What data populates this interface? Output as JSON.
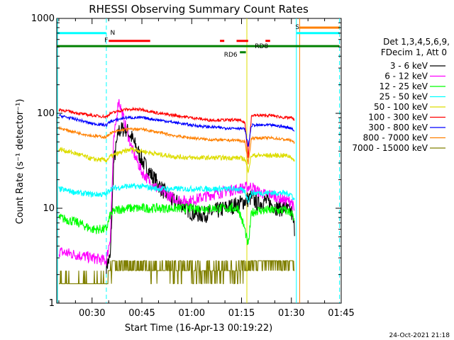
{
  "chart_data": {
    "type": "line",
    "title": "RHESSI Observing Summary Count Rates",
    "xlabel": "Start Time (16-Apr-13 00:19:22)",
    "ylabel": "Count Rate (s⁻¹ detector⁻¹)",
    "ylog": true,
    "ylim": [
      1,
      1000
    ],
    "xlim_minutes": [
      19.37,
      105
    ],
    "x_ticks": [
      "00:30",
      "00:45",
      "01:00",
      "01:15",
      "01:30",
      "01:45"
    ],
    "y_ticks": [
      "1",
      "10",
      "100",
      "1000"
    ],
    "legend_title_line1": "Det 1,3,4,5,6,9,",
    "legend_title_line2": "FDecim 1, Att 0",
    "legend_position": "right",
    "footer_timestamp": "24-Oct-2021 21:18",
    "colors": {
      "3-6": "#000000",
      "6-12": "#ff00ff",
      "12-25": "#00ff00",
      "25-50": "#00ffff",
      "50-100": "#dddd00",
      "100-300": "#ff0000",
      "300-800": "#0000ff",
      "800-7000": "#ff8000",
      "7000-15000": "#808000"
    },
    "series": [
      {
        "name": "3 - 6 keV",
        "key": "3-6",
        "x": [
          34.3,
          35.5,
          36.5,
          38,
          40,
          42,
          45,
          48,
          51,
          54,
          57,
          60,
          63,
          66,
          70,
          74,
          78,
          80,
          82,
          84,
          86,
          88,
          90,
          91
        ],
        "y": [
          2.5,
          3,
          30,
          65,
          70,
          55,
          32,
          22,
          16,
          12,
          11,
          9,
          8.5,
          9,
          10,
          11,
          13,
          11,
          12,
          11,
          10,
          10,
          9,
          6
        ]
      },
      {
        "name": "6 - 12 keV",
        "key": "6-12",
        "x": [
          20,
          26,
          30,
          34.3,
          35.5,
          36.5,
          38,
          40,
          42,
          45,
          48,
          51,
          54,
          57,
          60,
          63,
          66,
          70,
          74,
          78,
          80,
          82,
          84,
          86,
          88,
          90,
          91
        ],
        "y": [
          3.5,
          3.2,
          3.0,
          2.8,
          5,
          50,
          140,
          75,
          42,
          24,
          18,
          15,
          13,
          12,
          12,
          13,
          14,
          15,
          16,
          17,
          15,
          14,
          14,
          13,
          12,
          12,
          9
        ]
      },
      {
        "name": "12 - 25 keV",
        "key": "12-25",
        "x": [
          20,
          26,
          30,
          34.3,
          35.5,
          37,
          40,
          45,
          50,
          55,
          60,
          65,
          70,
          74,
          76,
          77,
          78,
          80,
          84,
          88,
          90,
          91
        ],
        "y": [
          8,
          7,
          6,
          6,
          8.5,
          9.5,
          10,
          10,
          10,
          10,
          10,
          10,
          10,
          10,
          6,
          4,
          9,
          9.5,
          9.5,
          9.5,
          9,
          7
        ]
      },
      {
        "name": "25 - 50 keV",
        "key": "25-50",
        "x": [
          20,
          26,
          30,
          34.3,
          35.5,
          40,
          45,
          50,
          55,
          60,
          65,
          70,
          74,
          76,
          77,
          78,
          80,
          84,
          88,
          90,
          91
        ],
        "y": [
          16,
          14.5,
          14,
          14,
          16,
          17,
          17,
          16,
          16,
          16,
          16,
          16,
          16,
          15,
          12,
          14.5,
          14.5,
          14.5,
          14.5,
          14,
          12
        ]
      },
      {
        "name": "50 - 100 keV",
        "key": "50-100",
        "x": [
          20,
          26,
          30,
          34.3,
          35.5,
          38,
          40,
          42,
          45,
          50,
          55,
          60,
          65,
          70,
          74,
          76,
          77,
          78,
          80,
          84,
          88,
          90,
          91
        ],
        "y": [
          42,
          37,
          33,
          32,
          35,
          38,
          40,
          42,
          40,
          37,
          35,
          34,
          34,
          34,
          34,
          33,
          25,
          36,
          36,
          36,
          36,
          35,
          30
        ]
      },
      {
        "name": "100 - 300 keV",
        "key": "100-300",
        "x": [
          20,
          26,
          30,
          34.3,
          35.5,
          40,
          45,
          50,
          55,
          60,
          65,
          70,
          74,
          76,
          77,
          78,
          80,
          84,
          88,
          90,
          91
        ],
        "y": [
          110,
          100,
          95,
          92,
          100,
          110,
          110,
          100,
          95,
          90,
          85,
          85,
          85,
          80,
          35,
          95,
          95,
          95,
          90,
          90,
          85
        ]
      },
      {
        "name": "300 - 800 keV",
        "key": "300-800",
        "x": [
          20,
          26,
          30,
          34.3,
          35.5,
          40,
          45,
          50,
          55,
          60,
          65,
          70,
          74,
          76,
          77,
          78,
          80,
          84,
          88,
          90,
          91
        ],
        "y": [
          95,
          85,
          78,
          75,
          82,
          90,
          90,
          85,
          80,
          75,
          72,
          70,
          70,
          68,
          45,
          75,
          75,
          75,
          72,
          70,
          65
        ]
      },
      {
        "name": "800 - 7000 keV",
        "key": "800-7000",
        "x": [
          20,
          26,
          30,
          34.3,
          35.5,
          40,
          45,
          50,
          55,
          60,
          65,
          70,
          74,
          76,
          77,
          78,
          80,
          84,
          88,
          90,
          91
        ],
        "y": [
          70,
          62,
          58,
          56,
          62,
          68,
          68,
          63,
          58,
          55,
          53,
          52,
          52,
          50,
          30,
          55,
          55,
          55,
          53,
          52,
          48
        ]
      },
      {
        "name": "7000 - 15000 keV",
        "key": "7000-15000",
        "x": [
          20,
          26,
          30,
          34.3,
          35.5,
          40,
          45,
          50,
          55,
          60,
          65,
          70,
          74,
          76,
          78,
          80,
          84,
          88,
          90,
          91
        ],
        "y": [
          1.6,
          1.6,
          1.6,
          1.6,
          2.4,
          2.6,
          2.5,
          2.4,
          2.3,
          2.3,
          2.2,
          2.2,
          2.2,
          2.4,
          2.8,
          2.8,
          2.8,
          2.8,
          2.7,
          2.5
        ]
      }
    ],
    "vertical_lines": [
      {
        "x": 19.6,
        "color": "#00ffff",
        "style": "solid"
      },
      {
        "x": 34.3,
        "color": "#00ffff",
        "style": "dashed"
      },
      {
        "x": 91.5,
        "color": "#00ffff",
        "style": "solid"
      },
      {
        "x": 92.5,
        "color": "#ff8000",
        "style": "solid"
      },
      {
        "x": 104.5,
        "color": "#00ffff",
        "style": "dashed"
      },
      {
        "x": 76.6,
        "color": "#dddd00",
        "style": "solid"
      }
    ],
    "flag_bars": [
      {
        "label": "N",
        "color": "#00ffff",
        "x0": 19.5,
        "x1": 34.2,
        "level": 700,
        "label_x": 35.5
      },
      {
        "label": "",
        "color": "#00ffff",
        "x0": 91.5,
        "x1": 104.5,
        "level": 700
      },
      {
        "label": "S",
        "color": "#ff8000",
        "x0": 92.5,
        "x1": 104.5,
        "level": 800,
        "label_x": 91.2
      },
      {
        "label": "F",
        "color": "#ff0000",
        "x0": 35.0,
        "x1": 47.5,
        "level": 580,
        "label_x": 33.7
      },
      {
        "label": "",
        "color": "#ff0000",
        "x0": 68.5,
        "x1": 69.8,
        "level": 580
      },
      {
        "label": "",
        "color": "#ff0000",
        "x0": 73.5,
        "x1": 77.0,
        "level": 580
      },
      {
        "label": "",
        "color": "#ff0000",
        "x0": 82.2,
        "x1": 83.6,
        "level": 580
      },
      {
        "label": "RD8",
        "color": "#008000",
        "x0": 19.5,
        "x1": 104.5,
        "level": 510,
        "label_x": 79.0
      },
      {
        "label": "RD6",
        "color": "#008000",
        "x0": 74.5,
        "x1": 76.3,
        "level": 440,
        "label_x": 69.7
      }
    ]
  }
}
